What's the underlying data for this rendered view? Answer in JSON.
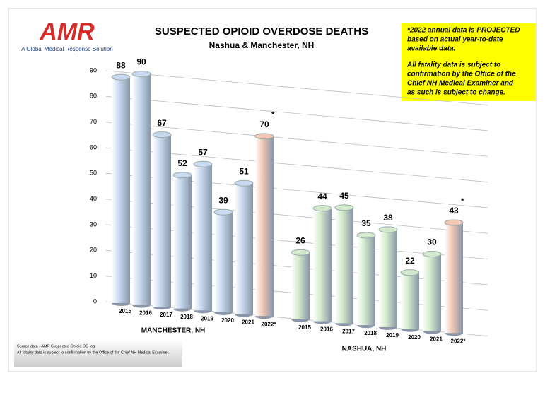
{
  "logo": {
    "name": "AMR",
    "tagline": "A Global Medical Response Solution"
  },
  "note": {
    "lines": [
      "*2022 annual data is PROJECTED",
      "based on actual year-to-date",
      "available data.",
      "All fatality data is subject to",
      "confirmation by the Office of the",
      "Chief NH Medical Examiner and",
      "as such is subject to change."
    ]
  },
  "source": {
    "lines": [
      "Source data - AMR Suspected Opioid OD log",
      "All fatality data is subject to confirmation by the Office of the Chief NH Medical Examiner."
    ]
  },
  "chart_data": {
    "type": "bar",
    "title": "SUSPECTED OPIOID OVERDOSE DEATHS",
    "subtitle": "Nashua & Manchester, NH",
    "ylim": [
      0,
      90
    ],
    "yticks": [
      0,
      10,
      20,
      30,
      40,
      50,
      60,
      70,
      80,
      90
    ],
    "grid": true,
    "projected_mark": "*",
    "groups": [
      {
        "name": "MANCHESTER, NH",
        "categories": [
          "2015",
          "2016",
          "2017",
          "2018",
          "2019",
          "2020",
          "2021",
          "2022*"
        ],
        "values": [
          88,
          90,
          67,
          52,
          57,
          39,
          51,
          70
        ],
        "colors": [
          "#c9d9f0",
          "#c9d9f0",
          "#c9d9f0",
          "#c9d9f0",
          "#c9d9f0",
          "#c9d9f0",
          "#c9d9f0",
          "#f2c6b2"
        ]
      },
      {
        "name": "NASHUA, NH",
        "categories": [
          "2015",
          "2016",
          "2017",
          "2018",
          "2019",
          "2020",
          "2021",
          "2022*"
        ],
        "values": [
          26,
          44,
          45,
          35,
          38,
          22,
          30,
          43
        ],
        "colors": [
          "#d2eacb",
          "#d2eacb",
          "#d2eacb",
          "#d2eacb",
          "#d2eacb",
          "#d2eacb",
          "#d2eacb",
          "#f2c6b2"
        ]
      }
    ]
  }
}
